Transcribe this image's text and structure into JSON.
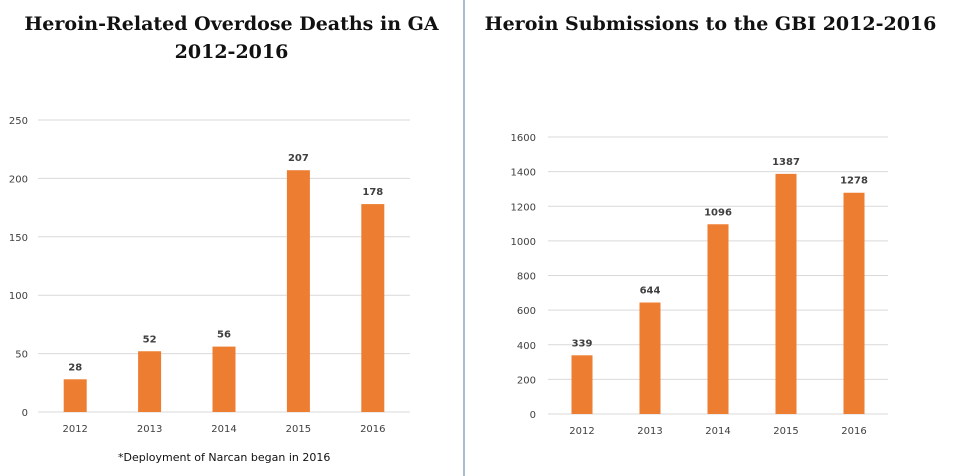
{
  "chart_data": [
    {
      "type": "bar",
      "title": [
        "Heroin-Related Overdose Deaths in GA",
        "2012-2016"
      ],
      "categories": [
        "2012",
        "2013",
        "2014",
        "2015",
        "2016"
      ],
      "values": [
        28,
        52,
        56,
        207,
        178
      ],
      "ylim": [
        0,
        250
      ],
      "yticks": [
        0,
        50,
        100,
        150,
        200,
        250
      ],
      "grid": true,
      "bar_color": "#ed7d31",
      "footnote": "*Deployment of Narcan began in 2016"
    },
    {
      "type": "bar",
      "title": [
        "Heroin Submissions to the GBI 2012-2016"
      ],
      "categories": [
        "2012",
        "2013",
        "2014",
        "2015",
        "2016"
      ],
      "values": [
        339,
        644,
        1096,
        1387,
        1278
      ],
      "ylim": [
        0,
        1600
      ],
      "yticks": [
        0,
        200,
        400,
        600,
        800,
        1000,
        1200,
        1400,
        1600
      ],
      "grid": true,
      "bar_color": "#ed7d31"
    }
  ]
}
